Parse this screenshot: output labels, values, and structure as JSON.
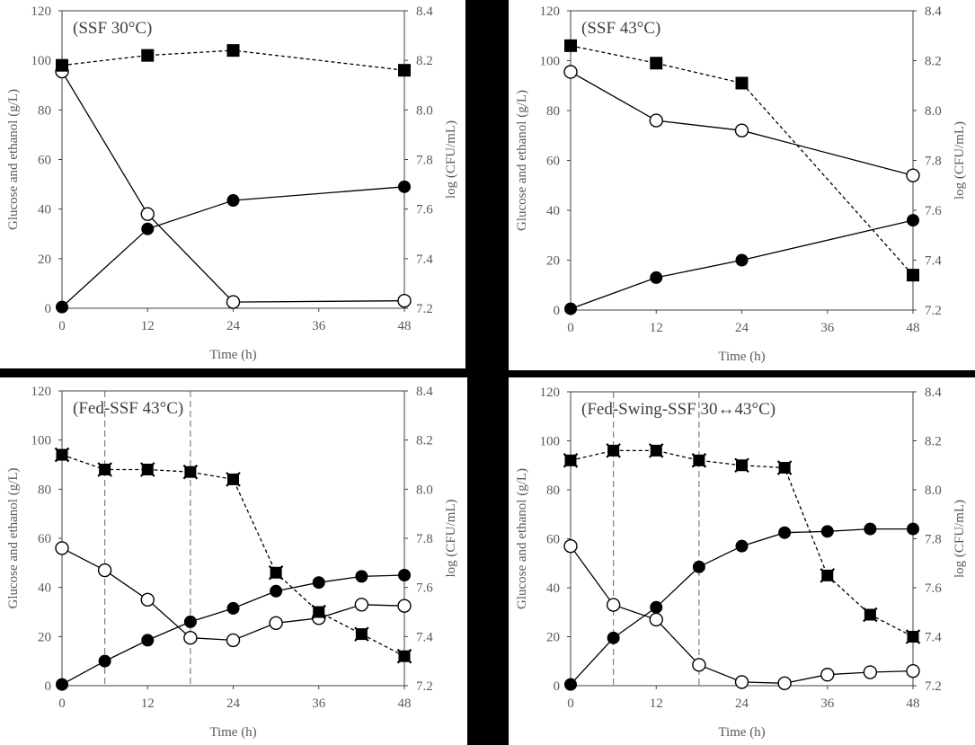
{
  "chart_data": [
    {
      "type": "line",
      "title": "(SSF 30°C)",
      "xlabel": "Time (h)",
      "ylabel": "Glucose and ethanol (g/L)",
      "y2label": "log (CFU/mL)",
      "xlim": [
        0,
        48
      ],
      "ylim": [
        0,
        120
      ],
      "y2lim": [
        7.2,
        8.4
      ],
      "xticks": [
        "0",
        "12",
        "24",
        "36",
        "48"
      ],
      "yticks": [
        "0",
        "20",
        "40",
        "60",
        "80",
        "100",
        "120"
      ],
      "y2ticks": [
        "7.2",
        "7.4",
        "7.6",
        "7.8",
        "8.0",
        "8.2",
        "8.4"
      ],
      "vlines": [],
      "series": [
        {
          "marker": "open-circle",
          "line": "solid",
          "axis": "left",
          "x": [
            0,
            12,
            24,
            48
          ],
          "y": [
            95.5,
            38,
            2.5,
            3
          ]
        },
        {
          "marker": "filled-circle",
          "line": "solid",
          "axis": "left",
          "x": [
            0,
            12,
            24,
            48
          ],
          "y": [
            0.5,
            32,
            43.5,
            49
          ]
        },
        {
          "marker": "filled-square",
          "line": "dashed",
          "axis": "right",
          "x": [
            0,
            12,
            24,
            48
          ],
          "y": [
            8.18,
            8.22,
            8.24,
            8.16
          ]
        }
      ]
    },
    {
      "type": "line",
      "title": "(SSF 43°C)",
      "xlabel": "Time (h)",
      "ylabel": "Glucose and ethanol (g/L)",
      "y2label": "log (CFU/mL)",
      "xlim": [
        0,
        48
      ],
      "ylim": [
        0,
        120
      ],
      "y2lim": [
        7.2,
        8.4
      ],
      "xticks": [
        "0",
        "12",
        "24",
        "36",
        "48"
      ],
      "yticks": [
        "0",
        "20",
        "40",
        "60",
        "80",
        "100",
        "120"
      ],
      "y2ticks": [
        "7.2",
        "7.4",
        "7.6",
        "7.8",
        "8.0",
        "8.2",
        "8.4"
      ],
      "vlines": [],
      "series": [
        {
          "marker": "open-circle",
          "line": "solid",
          "axis": "left",
          "x": [
            0,
            12,
            24,
            48
          ],
          "y": [
            95.5,
            76,
            72,
            54
          ]
        },
        {
          "marker": "filled-circle",
          "line": "solid",
          "axis": "left",
          "x": [
            0,
            12,
            24,
            48
          ],
          "y": [
            0.5,
            13,
            20,
            36
          ]
        },
        {
          "marker": "filled-square",
          "line": "dashed",
          "axis": "right",
          "x": [
            0,
            12,
            24,
            48
          ],
          "y": [
            8.26,
            8.19,
            8.11,
            7.34
          ]
        }
      ]
    },
    {
      "type": "line",
      "title": "(Fed-SSF 43°C)",
      "xlabel": "Time (h)",
      "ylabel": "Glucose and ethanol (g/L)",
      "y2label": "log (CFU/mL)",
      "xlim": [
        0,
        48
      ],
      "ylim": [
        0,
        120
      ],
      "y2lim": [
        7.2,
        8.4
      ],
      "xticks": [
        "0",
        "12",
        "24",
        "36",
        "48"
      ],
      "yticks": [
        "0",
        "20",
        "40",
        "60",
        "80",
        "100",
        "120"
      ],
      "y2ticks": [
        "7.2",
        "7.4",
        "7.6",
        "7.8",
        "8.0",
        "8.2",
        "8.4"
      ],
      "vlines": [
        6,
        18
      ],
      "series": [
        {
          "marker": "open-circle",
          "line": "solid",
          "axis": "left",
          "x": [
            0,
            6,
            12,
            18,
            24,
            30,
            36,
            42,
            48
          ],
          "y": [
            56,
            47,
            35,
            19.5,
            18.5,
            25.5,
            27.5,
            33,
            32.5
          ]
        },
        {
          "marker": "filled-circle",
          "line": "solid",
          "axis": "left",
          "x": [
            0,
            6,
            12,
            18,
            24,
            30,
            36,
            42,
            48
          ],
          "y": [
            0.5,
            10,
            18.5,
            26,
            31.5,
            38.5,
            42,
            44.5,
            45
          ]
        },
        {
          "marker": "filled-cross",
          "line": "dashed",
          "axis": "right",
          "x": [
            0,
            6,
            12,
            18,
            24,
            30,
            36,
            42,
            48
          ],
          "y": [
            8.14,
            8.08,
            8.08,
            8.07,
            8.04,
            7.66,
            7.5,
            7.41,
            7.32
          ]
        }
      ]
    },
    {
      "type": "line",
      "title": "(Fed-Swing-SSF  30↔43°C)",
      "xlabel": "Time (h)",
      "ylabel": "Glucose and ethanol (g/L)",
      "y2label": "log (CFU/mL)",
      "xlim": [
        0,
        48
      ],
      "ylim": [
        0,
        120
      ],
      "y2lim": [
        7.2,
        8.4
      ],
      "xticks": [
        "0",
        "12",
        "24",
        "36",
        "48"
      ],
      "yticks": [
        "0",
        "20",
        "40",
        "60",
        "80",
        "100",
        "120"
      ],
      "y2ticks": [
        "7.2",
        "7.4",
        "7.6",
        "7.8",
        "8.0",
        "8.2",
        "8.4"
      ],
      "vlines": [
        6,
        18
      ],
      "series": [
        {
          "marker": "open-circle",
          "line": "solid",
          "axis": "left",
          "x": [
            0,
            6,
            12,
            18,
            24,
            30,
            36,
            42,
            48
          ],
          "y": [
            57,
            33,
            27,
            8.5,
            1.5,
            1,
            4.5,
            5.5,
            6
          ]
        },
        {
          "marker": "filled-circle",
          "line": "solid",
          "axis": "left",
          "x": [
            0,
            6,
            12,
            18,
            24,
            30,
            36,
            42,
            48
          ],
          "y": [
            0.5,
            19.5,
            32,
            48.5,
            57,
            62.5,
            63,
            64,
            64
          ]
        },
        {
          "marker": "filled-cross",
          "line": "dashed",
          "axis": "right",
          "x": [
            0,
            6,
            12,
            18,
            24,
            30,
            36,
            42,
            48
          ],
          "y": [
            8.12,
            8.16,
            8.16,
            8.12,
            8.1,
            8.09,
            7.65,
            7.49,
            7.4
          ]
        }
      ]
    }
  ]
}
